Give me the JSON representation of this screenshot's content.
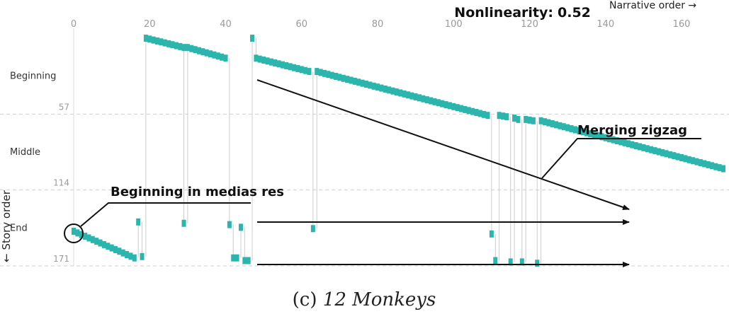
{
  "chart_data": {
    "type": "scatter",
    "title": "",
    "xlabel": "Narrative order →",
    "ylabel": "← Story order",
    "metric": {
      "label": "Nonlinearity:",
      "value": "0.52"
    },
    "xlim": [
      0,
      171
    ],
    "ylim": [
      0,
      171
    ],
    "y_inverted": true,
    "grid": "horizontal dashed lines at act boundaries",
    "x_ticks": [
      0,
      20,
      40,
      60,
      80,
      100,
      120,
      140,
      160
    ],
    "y_ticks": [
      57,
      114,
      171
    ],
    "acts": [
      "Beginning",
      "Middle",
      "End"
    ],
    "marker_color": "#2bb5ad",
    "connector_color": "#cccccc",
    "segments": [
      {
        "x_start": 0,
        "x_end": 16,
        "y_start": 145,
        "y_end": 165
      },
      {
        "x_start": 17,
        "x_end": 17,
        "y_start": 138,
        "y_end": 138
      },
      {
        "x_start": 18,
        "x_end": 18,
        "y_start": 164,
        "y_end": 164
      },
      {
        "x_start": 19,
        "x_end": 29,
        "y_start": 0,
        "y_end": 7
      },
      {
        "x_start": 29,
        "x_end": 29,
        "y_start": 139,
        "y_end": 139
      },
      {
        "x_start": 30,
        "x_end": 40,
        "y_start": 7,
        "y_end": 15
      },
      {
        "x_start": 41,
        "x_end": 41,
        "y_start": 140,
        "y_end": 140
      },
      {
        "x_start": 42,
        "x_end": 43,
        "y_start": 165,
        "y_end": 165
      },
      {
        "x_start": 44,
        "x_end": 44,
        "y_start": 142,
        "y_end": 142
      },
      {
        "x_start": 45,
        "x_end": 46,
        "y_start": 167,
        "y_end": 167
      },
      {
        "x_start": 47,
        "x_end": 47,
        "y_start": 0,
        "y_end": 0
      },
      {
        "x_start": 48,
        "x_end": 62,
        "y_start": 15,
        "y_end": 25
      },
      {
        "x_start": 63,
        "x_end": 63,
        "y_start": 143,
        "y_end": 143
      },
      {
        "x_start": 64,
        "x_end": 109,
        "y_start": 25,
        "y_end": 58
      },
      {
        "x_start": 110,
        "x_end": 110,
        "y_start": 147,
        "y_end": 147
      },
      {
        "x_start": 111,
        "x_end": 111,
        "y_start": 167,
        "y_end": 167
      },
      {
        "x_start": 112,
        "x_end": 114,
        "y_start": 58,
        "y_end": 59
      },
      {
        "x_start": 115,
        "x_end": 115,
        "y_start": 168,
        "y_end": 168
      },
      {
        "x_start": 116,
        "x_end": 117,
        "y_start": 60,
        "y_end": 61
      },
      {
        "x_start": 118,
        "x_end": 118,
        "y_start": 168,
        "y_end": 168
      },
      {
        "x_start": 119,
        "x_end": 121,
        "y_start": 61,
        "y_end": 62
      },
      {
        "x_start": 122,
        "x_end": 122,
        "y_start": 169,
        "y_end": 169
      },
      {
        "x_start": 123,
        "x_end": 171,
        "y_start": 62,
        "y_end": 98
      }
    ],
    "annotations": [
      {
        "text": "Beginning in medias res"
      },
      {
        "text": "Merging zigzag"
      }
    ]
  },
  "caption": {
    "label": "(c)",
    "title": "12 Monkeys"
  }
}
